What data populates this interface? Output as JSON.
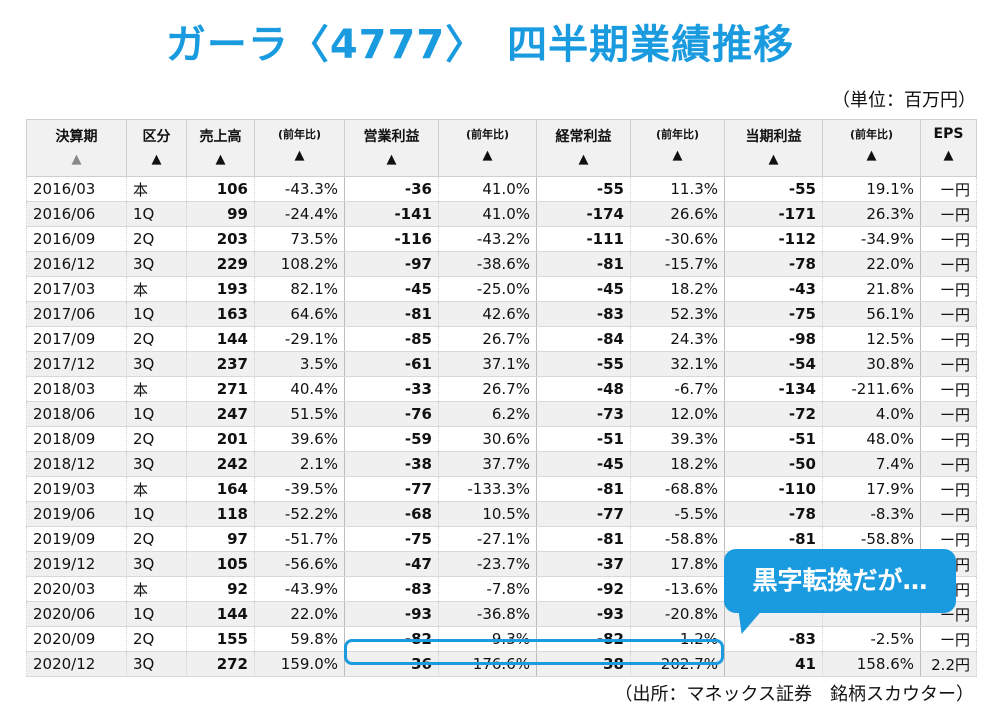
{
  "title": "ガーラ〈4777〉　四半期業績推移",
  "unit": "（単位：百万円）",
  "source": "（出所：マネックス証券　銘柄スカウター）",
  "callout": "黒字転換だが…",
  "headers": {
    "period": "決算期",
    "kubun": "区分",
    "sales": "売上高",
    "sales_yoy": "(前年比)",
    "op": "営業利益",
    "op_yoy": "(前年比)",
    "ord": "経常利益",
    "ord_yoy": "(前年比)",
    "net": "当期利益",
    "net_yoy": "(前年比)",
    "eps": "EPS",
    "sort_arrow": "▲"
  },
  "rows": [
    {
      "period": "2016/03",
      "kubun": "本",
      "sales": "106",
      "sales_yoy": "-43.3%",
      "op": "-36",
      "op_yoy": "41.0%",
      "ord": "-55",
      "ord_yoy": "11.3%",
      "net": "-55",
      "net_yoy": "19.1%",
      "eps": "ー円"
    },
    {
      "period": "2016/06",
      "kubun": "1Q",
      "sales": "99",
      "sales_yoy": "-24.4%",
      "op": "-141",
      "op_yoy": "41.0%",
      "ord": "-174",
      "ord_yoy": "26.6%",
      "net": "-171",
      "net_yoy": "26.3%",
      "eps": "ー円"
    },
    {
      "period": "2016/09",
      "kubun": "2Q",
      "sales": "203",
      "sales_yoy": "73.5%",
      "op": "-116",
      "op_yoy": "-43.2%",
      "ord": "-111",
      "ord_yoy": "-30.6%",
      "net": "-112",
      "net_yoy": "-34.9%",
      "eps": "ー円"
    },
    {
      "period": "2016/12",
      "kubun": "3Q",
      "sales": "229",
      "sales_yoy": "108.2%",
      "op": "-97",
      "op_yoy": "-38.6%",
      "ord": "-81",
      "ord_yoy": "-15.7%",
      "net": "-78",
      "net_yoy": "22.0%",
      "eps": "ー円"
    },
    {
      "period": "2017/03",
      "kubun": "本",
      "sales": "193",
      "sales_yoy": "82.1%",
      "op": "-45",
      "op_yoy": "-25.0%",
      "ord": "-45",
      "ord_yoy": "18.2%",
      "net": "-43",
      "net_yoy": "21.8%",
      "eps": "ー円"
    },
    {
      "period": "2017/06",
      "kubun": "1Q",
      "sales": "163",
      "sales_yoy": "64.6%",
      "op": "-81",
      "op_yoy": "42.6%",
      "ord": "-83",
      "ord_yoy": "52.3%",
      "net": "-75",
      "net_yoy": "56.1%",
      "eps": "ー円"
    },
    {
      "period": "2017/09",
      "kubun": "2Q",
      "sales": "144",
      "sales_yoy": "-29.1%",
      "op": "-85",
      "op_yoy": "26.7%",
      "ord": "-84",
      "ord_yoy": "24.3%",
      "net": "-98",
      "net_yoy": "12.5%",
      "eps": "ー円"
    },
    {
      "period": "2017/12",
      "kubun": "3Q",
      "sales": "237",
      "sales_yoy": "3.5%",
      "op": "-61",
      "op_yoy": "37.1%",
      "ord": "-55",
      "ord_yoy": "32.1%",
      "net": "-54",
      "net_yoy": "30.8%",
      "eps": "ー円"
    },
    {
      "period": "2018/03",
      "kubun": "本",
      "sales": "271",
      "sales_yoy": "40.4%",
      "op": "-33",
      "op_yoy": "26.7%",
      "ord": "-48",
      "ord_yoy": "-6.7%",
      "net": "-134",
      "net_yoy": "-211.6%",
      "eps": "ー円"
    },
    {
      "period": "2018/06",
      "kubun": "1Q",
      "sales": "247",
      "sales_yoy": "51.5%",
      "op": "-76",
      "op_yoy": "6.2%",
      "ord": "-73",
      "ord_yoy": "12.0%",
      "net": "-72",
      "net_yoy": "4.0%",
      "eps": "ー円"
    },
    {
      "period": "2018/09",
      "kubun": "2Q",
      "sales": "201",
      "sales_yoy": "39.6%",
      "op": "-59",
      "op_yoy": "30.6%",
      "ord": "-51",
      "ord_yoy": "39.3%",
      "net": "-51",
      "net_yoy": "48.0%",
      "eps": "ー円"
    },
    {
      "period": "2018/12",
      "kubun": "3Q",
      "sales": "242",
      "sales_yoy": "2.1%",
      "op": "-38",
      "op_yoy": "37.7%",
      "ord": "-45",
      "ord_yoy": "18.2%",
      "net": "-50",
      "net_yoy": "7.4%",
      "eps": "ー円"
    },
    {
      "period": "2019/03",
      "kubun": "本",
      "sales": "164",
      "sales_yoy": "-39.5%",
      "op": "-77",
      "op_yoy": "-133.3%",
      "ord": "-81",
      "ord_yoy": "-68.8%",
      "net": "-110",
      "net_yoy": "17.9%",
      "eps": "ー円"
    },
    {
      "period": "2019/06",
      "kubun": "1Q",
      "sales": "118",
      "sales_yoy": "-52.2%",
      "op": "-68",
      "op_yoy": "10.5%",
      "ord": "-77",
      "ord_yoy": "-5.5%",
      "net": "-78",
      "net_yoy": "-8.3%",
      "eps": "ー円"
    },
    {
      "period": "2019/09",
      "kubun": "2Q",
      "sales": "97",
      "sales_yoy": "-51.7%",
      "op": "-75",
      "op_yoy": "-27.1%",
      "ord": "-81",
      "ord_yoy": "-58.8%",
      "net": "-81",
      "net_yoy": "-58.8%",
      "eps": "ー円"
    },
    {
      "period": "2019/12",
      "kubun": "3Q",
      "sales": "105",
      "sales_yoy": "-56.6%",
      "op": "-47",
      "op_yoy": "-23.7%",
      "ord": "-37",
      "ord_yoy": "17.8%",
      "net": "",
      "net_yoy": "",
      "eps": "ー円"
    },
    {
      "period": "2020/03",
      "kubun": "本",
      "sales": "92",
      "sales_yoy": "-43.9%",
      "op": "-83",
      "op_yoy": "-7.8%",
      "ord": "-92",
      "ord_yoy": "-13.6%",
      "net": "",
      "net_yoy": "",
      "eps": "ー円"
    },
    {
      "period": "2020/06",
      "kubun": "1Q",
      "sales": "144",
      "sales_yoy": "22.0%",
      "op": "-93",
      "op_yoy": "-36.8%",
      "ord": "-93",
      "ord_yoy": "-20.8%",
      "net": "",
      "net_yoy": "",
      "eps": "ー円"
    },
    {
      "period": "2020/09",
      "kubun": "2Q",
      "sales": "155",
      "sales_yoy": "59.8%",
      "op": "-82",
      "op_yoy": "-9.3%",
      "ord": "-82",
      "ord_yoy": "-1.2%",
      "net": "-83",
      "net_yoy": "-2.5%",
      "eps": "ー円"
    },
    {
      "period": "2020/12",
      "kubun": "3Q",
      "sales": "272",
      "sales_yoy": "159.0%",
      "op": "36",
      "op_yoy": "176.6%",
      "ord": "38",
      "ord_yoy": "202.7%",
      "net": "41",
      "net_yoy": "158.6%",
      "eps": "2.2円"
    }
  ]
}
